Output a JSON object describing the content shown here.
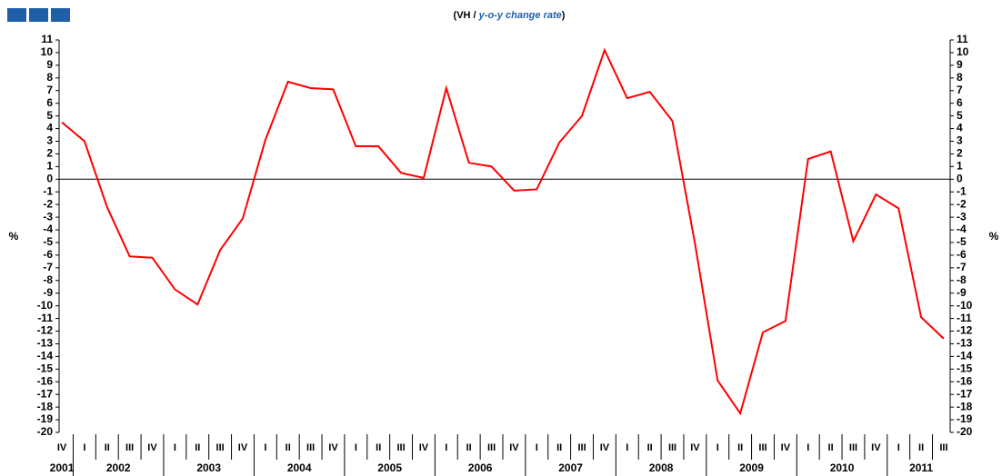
{
  "chart_data": {
    "type": "line",
    "title": {
      "prefix": "(VH / ",
      "italic": "y-o-y change rate",
      "suffix": ")"
    },
    "y_label": "%",
    "categories": [
      "IV",
      "I",
      "II",
      "III",
      "IV",
      "I",
      "II",
      "III",
      "IV",
      "I",
      "II",
      "III",
      "IV",
      "I",
      "II",
      "III",
      "IV",
      "I",
      "II",
      "III",
      "IV",
      "I",
      "II",
      "III",
      "IV",
      "I",
      "II",
      "III",
      "IV",
      "I",
      "II",
      "III",
      "IV",
      "I",
      "II",
      "III",
      "IV",
      "I",
      "II",
      "III"
    ],
    "years": [
      "2001",
      "2002",
      "2003",
      "2004",
      "2005",
      "2006",
      "2007",
      "2008",
      "2009",
      "2010",
      "2011"
    ],
    "series": [
      {
        "name": "VH",
        "color": "#ff0000",
        "values": [
          4.5,
          3.0,
          -2.2,
          -6.1,
          -6.2,
          -8.7,
          -9.9,
          -5.6,
          -3.1,
          3.1,
          7.7,
          7.2,
          7.1,
          2.6,
          2.6,
          0.5,
          0.1,
          7.2,
          1.3,
          1.0,
          -0.9,
          -0.8,
          2.9,
          5.0,
          10.2,
          6.4,
          6.9,
          4.6,
          -5.1,
          -15.9,
          -18.5,
          -12.1,
          -11.2,
          1.6,
          2.2,
          -4.9,
          -1.2,
          -2.3,
          -10.9,
          -12.6
        ]
      }
    ],
    "ylim": [
      -20,
      11
    ],
    "yticks": [
      11,
      10,
      9,
      8,
      7,
      6,
      5,
      4,
      3,
      2,
      1,
      0,
      -1,
      -2,
      -3,
      -4,
      -5,
      -6,
      -7,
      -8,
      -9,
      -10,
      -11,
      -12,
      -13,
      -14,
      -15,
      -16,
      -17,
      -18,
      -19,
      -20
    ]
  }
}
